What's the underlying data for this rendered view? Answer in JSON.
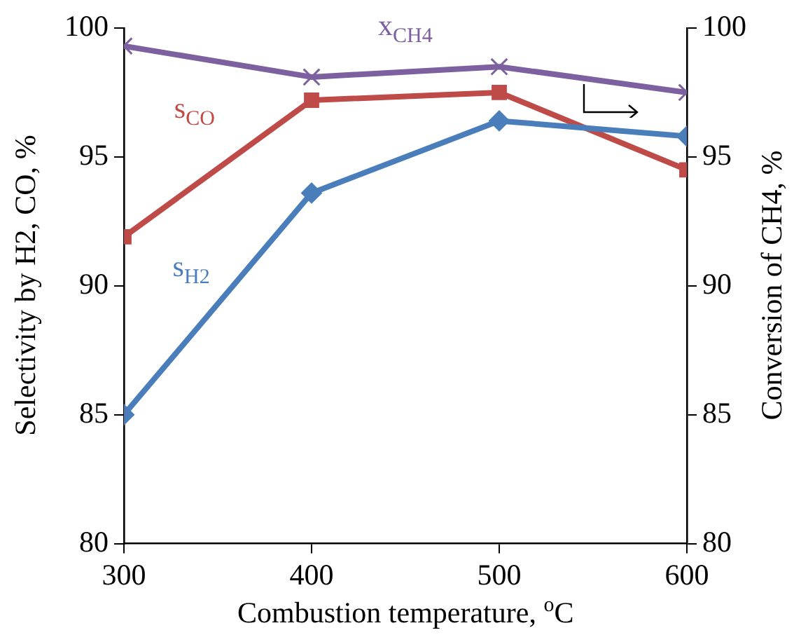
{
  "chart_data": {
    "type": "line",
    "xlabel": "Combustion temperature, $^{o}$C",
    "ylabel": "Selectivity by H2, CO, %",
    "y2label": "Conversion of CH4, %",
    "x": [
      300,
      400,
      500,
      600
    ],
    "xlim": [
      300,
      600
    ],
    "xticks": [
      300,
      400,
      500,
      600
    ],
    "ylim": [
      80,
      100
    ],
    "yticks": [
      80,
      85,
      90,
      95,
      100
    ],
    "y2lim": [
      80,
      100
    ],
    "y2ticks": [
      80,
      85,
      90,
      95,
      100
    ],
    "grid": false,
    "legend": false,
    "series": [
      {
        "name": "s$_{H2}$",
        "color": "#4a7ebb",
        "marker": "diamond",
        "values": [
          85.0,
          93.6,
          96.4,
          95.8
        ]
      },
      {
        "name": "s$_{CO}$",
        "color": "#be4b48",
        "marker": "square",
        "values": [
          91.9,
          97.2,
          97.5,
          94.5
        ]
      },
      {
        "name": "x$_{CH4}$",
        "color": "#7d60a0",
        "marker": "cross",
        "axis": "y2",
        "values": [
          99.3,
          98.1,
          98.5,
          97.5
        ]
      }
    ]
  }
}
